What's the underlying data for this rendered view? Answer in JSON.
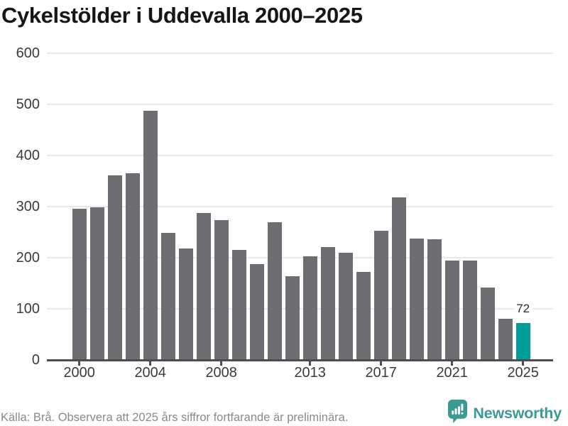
{
  "title": "Cykelstölder i Uddevalla 2000–2025",
  "footer": {
    "source_note": "Källa: Brå. Observera att 2025 års siffror fortfarande är preliminära.",
    "brand": "Newsworthy"
  },
  "colors": {
    "bar": "#6D6D72",
    "highlight_bar": "#009E99",
    "gridline": "#E8E8E8",
    "axis": "#4D4D4D",
    "brand_teal": "#3B9A93"
  },
  "chart_data": {
    "type": "bar",
    "title": "Cykelstölder i Uddevalla 2000–2025",
    "xlabel": "",
    "ylabel": "",
    "x": [
      2000,
      2001,
      2002,
      2003,
      2004,
      2005,
      2006,
      2007,
      2008,
      2009,
      2010,
      2011,
      2012,
      2013,
      2014,
      2015,
      2016,
      2017,
      2018,
      2019,
      2020,
      2021,
      2022,
      2023,
      2024,
      2025
    ],
    "values": [
      296,
      299,
      361,
      365,
      487,
      249,
      218,
      287,
      274,
      215,
      188,
      270,
      164,
      203,
      221,
      210,
      172,
      253,
      318,
      237,
      236,
      194,
      195,
      142,
      81,
      72
    ],
    "ylim": [
      0,
      600
    ],
    "yticks": [
      0,
      100,
      200,
      300,
      400,
      500,
      600
    ],
    "xticks": [
      2000,
      2004,
      2008,
      2013,
      2017,
      2021,
      2025
    ],
    "grid": true,
    "legend": false,
    "highlight": {
      "year": 2025,
      "label": "72"
    }
  }
}
